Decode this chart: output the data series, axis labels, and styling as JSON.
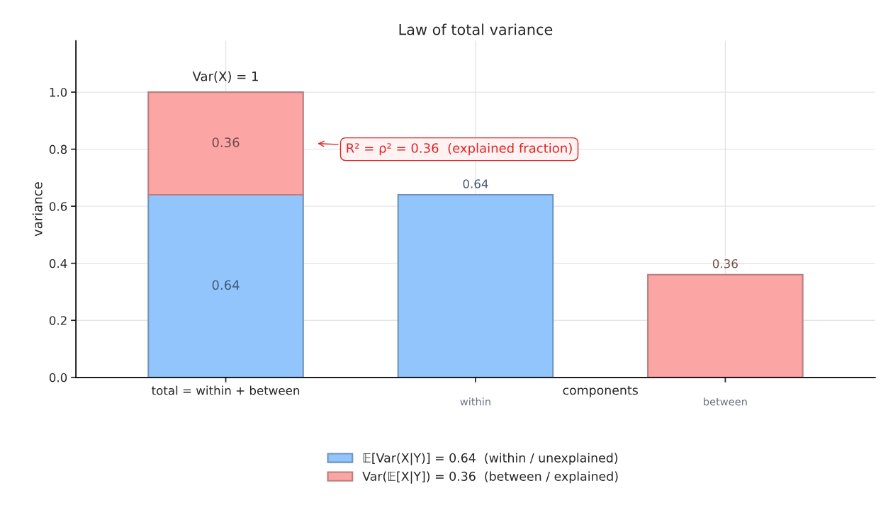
{
  "chart_data": {
    "type": "bar",
    "title": "Law of total variance",
    "ylabel": "variance",
    "categories": [
      "total = within + between",
      "within",
      "between"
    ],
    "series": [
      {
        "name": "𝔼[Var(X|Y)] = 0.64  (within / unexplained)",
        "color": "#93c5fd",
        "values": [
          0.64,
          0.64,
          null
        ]
      },
      {
        "name": "Var(𝔼[X|Y]) = 0.36  (between / explained)",
        "color": "#fca5a5",
        "values": [
          0.36,
          null,
          0.36
        ]
      }
    ],
    "stacked": true,
    "data_labels": true,
    "totals": [
      "Var(X) = 1",
      null,
      null
    ],
    "ylim": [
      0,
      1.18
    ],
    "yticks": [
      {
        "value": 0,
        "label": "0.0"
      },
      0.2,
      0.4,
      0.6,
      0.8,
      {
        "value": 1,
        "label": "1.0"
      }
    ],
    "grid": true,
    "legend": "bottom",
    "annotations": [
      "R² = ρ² = 0.36  (explained fraction)",
      "components"
    ]
  }
}
